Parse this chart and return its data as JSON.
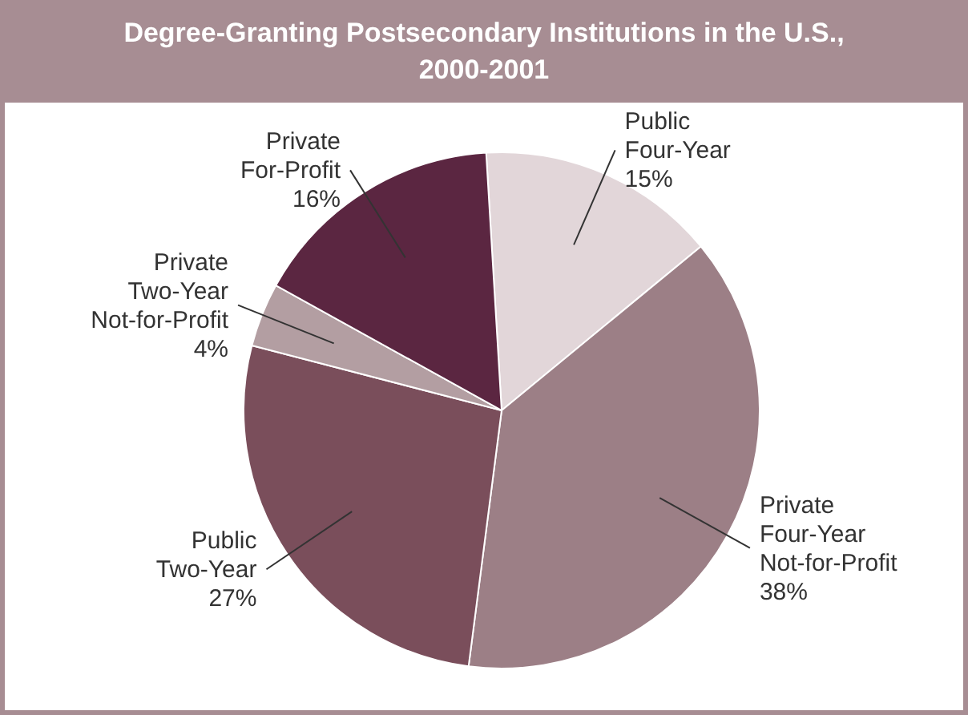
{
  "chart_data": {
    "type": "pie",
    "title": "Degree-Granting Postsecondary Institutions in the U.S., 2000-2001",
    "categories": [
      "Public Four-Year",
      "Private Four-Year Not-for-Profit",
      "Public Two-Year",
      "Private Two-Year Not-for-Profit",
      "Private For-Profit"
    ],
    "values": [
      15,
      38,
      27,
      4,
      16
    ],
    "value_labels": [
      "15%",
      "38%",
      "27%",
      "4%",
      "16%"
    ],
    "colors": [
      "#e2d6d9",
      "#9c7f86",
      "#7a4e5b",
      "#b39ea2",
      "#5b2641"
    ]
  }
}
